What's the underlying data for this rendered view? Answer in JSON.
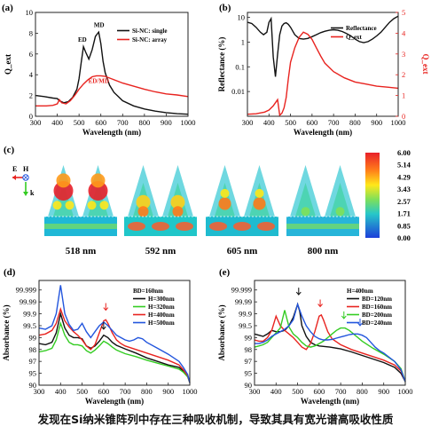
{
  "panel_labels": [
    "(a)",
    "(b)",
    "(c)",
    "(d)",
    "(e)"
  ],
  "caption": "发现在Si纳米锥阵列中存在三种吸收机制，导致其具有宽光谱高吸收性质",
  "colors": {
    "black": "#111111",
    "red": "#e8231f",
    "green": "#33cc22",
    "blue": "#2255dd"
  },
  "chart_data": [
    {
      "id": "a",
      "type": "line",
      "xlabel": "Wavelength (nm)",
      "ylabel": "Q_ext",
      "xlim": [
        300,
        1000
      ],
      "ylim": [
        0,
        10
      ],
      "xticks": [
        300,
        400,
        500,
        600,
        700,
        800,
        900,
        1000
      ],
      "yticks": [
        0,
        2,
        4,
        6,
        8,
        10
      ],
      "legend": "top-right",
      "annotations": [
        "ED",
        "MD",
        "ED/MD"
      ],
      "series": [
        {
          "name": "Si-NC: single",
          "color": "#111111",
          "x": [
            300,
            340,
            380,
            400,
            410,
            430,
            450,
            470,
            490,
            500,
            510,
            520,
            530,
            545,
            560,
            575,
            590,
            600,
            610,
            620,
            640,
            660,
            700,
            750,
            800,
            850,
            900,
            950,
            1000
          ],
          "y": [
            2.0,
            1.9,
            1.75,
            1.7,
            1.5,
            1.3,
            1.4,
            1.8,
            2.6,
            3.6,
            5.2,
            6.7,
            6.2,
            5.5,
            6.4,
            7.7,
            8.1,
            7.0,
            5.3,
            4.2,
            3.0,
            2.3,
            1.5,
            1.0,
            0.7,
            0.5,
            0.35,
            0.25,
            0.2
          ]
        },
        {
          "name": "Si-NC: array",
          "color": "#e8231f",
          "x": [
            300,
            350,
            380,
            400,
            410,
            420,
            440,
            460,
            480,
            500,
            520,
            540,
            560,
            580,
            600,
            620,
            650,
            700,
            750,
            800,
            850,
            900,
            950,
            1000
          ],
          "y": [
            1.0,
            1.0,
            1.05,
            1.2,
            1.6,
            1.3,
            1.2,
            1.5,
            2.0,
            2.6,
            3.1,
            3.5,
            3.8,
            3.9,
            3.9,
            3.85,
            3.6,
            3.2,
            2.9,
            2.6,
            2.35,
            2.15,
            2.05,
            1.9
          ]
        }
      ]
    },
    {
      "id": "b",
      "type": "line",
      "xlabel": "Wavelength (nm)",
      "ylabel": "Reflectance (%)",
      "ylabel_right": "Q_ext",
      "xlim": [
        300,
        1000
      ],
      "ylim": [
        -3,
        1.2
      ],
      "ylim_right": [
        0,
        5
      ],
      "xticks": [
        300,
        400,
        500,
        600,
        700,
        800,
        900,
        1000
      ],
      "yticks_left_values": [
        0.01,
        0.1,
        1,
        10
      ],
      "yticks_left_labels": [
        "0.01",
        "0.1",
        "1",
        "10"
      ],
      "yticks_right": [
        0,
        1,
        2,
        3,
        4,
        5
      ],
      "y_scale_left": "log",
      "legend": "top-right",
      "series": [
        {
          "name": "Reflectance",
          "color": "#111111",
          "axis": "left",
          "x": [
            300,
            320,
            340,
            360,
            375,
            390,
            400,
            410,
            420,
            430,
            440,
            450,
            460,
            470,
            480,
            490,
            500,
            520,
            540,
            560,
            580,
            600,
            620,
            640,
            660,
            680,
            700,
            720,
            740,
            760,
            780,
            800,
            820,
            840,
            860,
            880,
            900,
            920,
            940,
            960,
            980,
            1000
          ],
          "y": [
            0.8,
            0.75,
            0.6,
            0.4,
            0.3,
            0.4,
            0.8,
            0.95,
            -0.6,
            -1.4,
            -0.5,
            0.3,
            0.65,
            0.75,
            0.78,
            0.72,
            0.6,
            0.3,
            0.15,
            0.12,
            0.15,
            0.22,
            0.3,
            0.38,
            0.44,
            0.48,
            0.5,
            0.48,
            0.43,
            0.35,
            0.25,
            0.12,
            0.02,
            -0.02,
            0.02,
            0.12,
            0.25,
            0.4,
            0.6,
            0.8,
            0.95,
            1.05
          ]
        },
        {
          "name": "Q_ext",
          "color": "#e8231f",
          "axis": "right",
          "x": [
            300,
            340,
            380,
            400,
            420,
            440,
            450,
            460,
            470,
            480,
            490,
            500,
            520,
            540,
            560,
            580,
            600,
            620,
            640,
            660,
            700,
            750,
            800,
            850,
            900,
            950,
            1000
          ],
          "y": [
            0.1,
            0.12,
            0.2,
            0.3,
            0.5,
            0.8,
            0.05,
            0.15,
            0.4,
            0.9,
            1.8,
            2.6,
            3.3,
            3.8,
            4.05,
            3.95,
            3.7,
            3.3,
            2.9,
            2.55,
            2.15,
            1.85,
            1.65,
            1.55,
            1.45,
            1.4,
            1.35
          ]
        }
      ]
    },
    {
      "id": "c",
      "type": "heatmap",
      "colorbar_ticks": [
        "6.00",
        "5.14",
        "4.29",
        "3.43",
        "2.57",
        "1.71",
        "0.85",
        "0.00"
      ],
      "field_labels": [
        "518 nm",
        "592 nm",
        "605 nm",
        "800 nm"
      ],
      "axes_labels": [
        "E",
        "H",
        "k"
      ]
    },
    {
      "id": "d",
      "type": "line",
      "xlabel": "Wavelength (nm)",
      "ylabel": "Absorbance (%)",
      "xlim": [
        300,
        1000
      ],
      "xticks": [
        300,
        400,
        500,
        600,
        700,
        800,
        900,
        1000
      ],
      "yticks": [
        "90",
        "95",
        "97",
        "98",
        "99",
        "99.5",
        "99.9",
        "99.99",
        "99.999"
      ],
      "legend_title": "BD=160nm",
      "legend": "top-right",
      "series": [
        {
          "name": "H=300nm",
          "color": "#111111",
          "x": [
            300,
            330,
            360,
            380,
            400,
            420,
            440,
            460,
            480,
            500,
            520,
            540,
            560,
            580,
            600,
            620,
            640,
            660,
            680,
            700,
            750,
            800,
            850,
            900,
            950,
            970,
            990,
            1000
          ],
          "y": [
            3.5,
            3.4,
            3.6,
            4.4,
            6.0,
            4.8,
            4.2,
            4.0,
            4.0,
            3.9,
            3.3,
            3.1,
            3.3,
            3.7,
            4.2,
            4.0,
            3.6,
            3.35,
            3.2,
            3.05,
            2.7,
            2.3,
            2.0,
            1.7,
            1.5,
            1.2,
            0.8,
            0.2
          ]
        },
        {
          "name": "H=320nm",
          "color": "#33cc22",
          "x": [
            300,
            330,
            360,
            380,
            400,
            420,
            440,
            460,
            480,
            500,
            520,
            540,
            560,
            580,
            600,
            620,
            640,
            660,
            680,
            700,
            750,
            800,
            850,
            900,
            950,
            970,
            990,
            1000
          ],
          "y": [
            2.8,
            2.9,
            3.1,
            3.8,
            5.2,
            4.2,
            3.6,
            3.4,
            3.4,
            3.3,
            2.9,
            2.7,
            2.95,
            3.3,
            3.7,
            3.5,
            3.2,
            2.95,
            2.8,
            2.65,
            2.4,
            2.1,
            1.85,
            1.6,
            1.35,
            1.1,
            0.7,
            0.2
          ]
        },
        {
          "name": "H=400nm",
          "color": "#e8231f",
          "x": [
            300,
            330,
            360,
            380,
            400,
            420,
            440,
            460,
            480,
            500,
            520,
            540,
            560,
            580,
            600,
            610,
            620,
            640,
            660,
            680,
            700,
            750,
            800,
            850,
            900,
            950,
            970,
            990,
            1000
          ],
          "y": [
            4.2,
            4.3,
            4.6,
            5.2,
            6.4,
            5.4,
            4.9,
            4.5,
            4.2,
            3.8,
            3.3,
            3.0,
            3.4,
            4.4,
            5.4,
            5.5,
            5.2,
            4.4,
            3.8,
            3.5,
            3.3,
            3.0,
            2.7,
            2.4,
            2.1,
            1.7,
            1.3,
            0.8,
            0.2
          ]
        },
        {
          "name": "H=500nm",
          "color": "#2255dd",
          "x": [
            300,
            330,
            360,
            380,
            400,
            420,
            440,
            460,
            480,
            500,
            520,
            540,
            560,
            580,
            600,
            620,
            640,
            660,
            680,
            700,
            720,
            740,
            760,
            780,
            800,
            850,
            900,
            950,
            970,
            990,
            1000
          ],
          "y": [
            4.8,
            4.7,
            5.0,
            6.0,
            8.4,
            6.0,
            5.1,
            4.6,
            4.7,
            5.2,
            4.5,
            4.0,
            4.5,
            5.0,
            5.3,
            5.0,
            4.6,
            4.2,
            4.0,
            3.8,
            3.7,
            3.8,
            4.0,
            3.9,
            3.6,
            3.1,
            2.6,
            2.0,
            1.5,
            0.9,
            0.2
          ]
        }
      ]
    },
    {
      "id": "e",
      "type": "line",
      "xlabel": "Wavelength (nm)",
      "ylabel": "Absorbance (%)",
      "xlim": [
        300,
        1000
      ],
      "xticks": [
        300,
        400,
        500,
        600,
        700,
        800,
        900,
        1000
      ],
      "yticks": [
        "90",
        "95",
        "97",
        "98",
        "99",
        "99.5",
        "99.9",
        "99.99",
        "99.999"
      ],
      "legend_title": "H=400nm",
      "legend": "top-right",
      "series": [
        {
          "name": "BD=120nm",
          "color": "#111111",
          "x": [
            300,
            320,
            340,
            360,
            380,
            400,
            420,
            440,
            460,
            480,
            500,
            510,
            520,
            540,
            560,
            580,
            600,
            650,
            700,
            750,
            800,
            850,
            900,
            950,
            980,
            1000
          ],
          "y": [
            4.3,
            4.2,
            4.1,
            4.3,
            4.6,
            4.5,
            4.5,
            4.6,
            5.0,
            5.7,
            6.8,
            6.2,
            5.0,
            4.1,
            3.6,
            3.4,
            3.3,
            3.2,
            3.05,
            2.8,
            2.5,
            2.2,
            1.9,
            1.5,
            1.0,
            0.3
          ]
        },
        {
          "name": "BD=160nm",
          "color": "#e8231f",
          "x": [
            300,
            320,
            340,
            360,
            380,
            400,
            420,
            440,
            460,
            480,
            500,
            520,
            540,
            560,
            580,
            600,
            610,
            620,
            640,
            660,
            700,
            750,
            800,
            850,
            900,
            950,
            980,
            1000
          ],
          "y": [
            3.8,
            3.7,
            3.7,
            4.0,
            4.6,
            5.8,
            5.0,
            4.6,
            4.3,
            4.0,
            3.6,
            3.2,
            3.0,
            3.5,
            4.5,
            5.8,
            5.9,
            5.5,
            4.5,
            3.9,
            3.4,
            3.0,
            2.7,
            2.4,
            2.1,
            1.7,
            1.2,
            0.3
          ]
        },
        {
          "name": "BD=200nm",
          "color": "#33cc22",
          "x": [
            300,
            320,
            340,
            360,
            380,
            400,
            420,
            440,
            460,
            480,
            500,
            520,
            540,
            560,
            580,
            600,
            620,
            640,
            660,
            680,
            700,
            720,
            740,
            760,
            780,
            800,
            850,
            900,
            950,
            980,
            1000
          ],
          "y": [
            3.2,
            3.3,
            3.4,
            3.6,
            4.0,
            4.4,
            4.8,
            6.3,
            4.9,
            4.3,
            4.0,
            3.6,
            3.3,
            3.2,
            3.3,
            3.5,
            3.7,
            4.0,
            4.3,
            4.6,
            4.8,
            4.8,
            4.6,
            4.3,
            4.0,
            3.7,
            3.1,
            2.6,
            2.0,
            1.4,
            0.3
          ]
        },
        {
          "name": "BD=240nm",
          "color": "#2255dd",
          "x": [
            300,
            320,
            340,
            360,
            380,
            400,
            420,
            440,
            460,
            480,
            500,
            520,
            540,
            560,
            580,
            600,
            620,
            640,
            660,
            680,
            700,
            720,
            740,
            760,
            780,
            800,
            820,
            840,
            860,
            880,
            900,
            950,
            980,
            1000
          ],
          "y": [
            3.5,
            3.5,
            3.6,
            3.8,
            4.1,
            4.3,
            4.5,
            4.7,
            5.0,
            5.5,
            6.8,
            5.8,
            5.0,
            4.5,
            4.1,
            3.9,
            3.8,
            3.8,
            3.85,
            3.95,
            4.05,
            4.15,
            4.25,
            4.3,
            4.3,
            4.2,
            4.0,
            3.6,
            3.2,
            2.9,
            2.7,
            2.0,
            1.3,
            0.3
          ]
        }
      ]
    }
  ]
}
